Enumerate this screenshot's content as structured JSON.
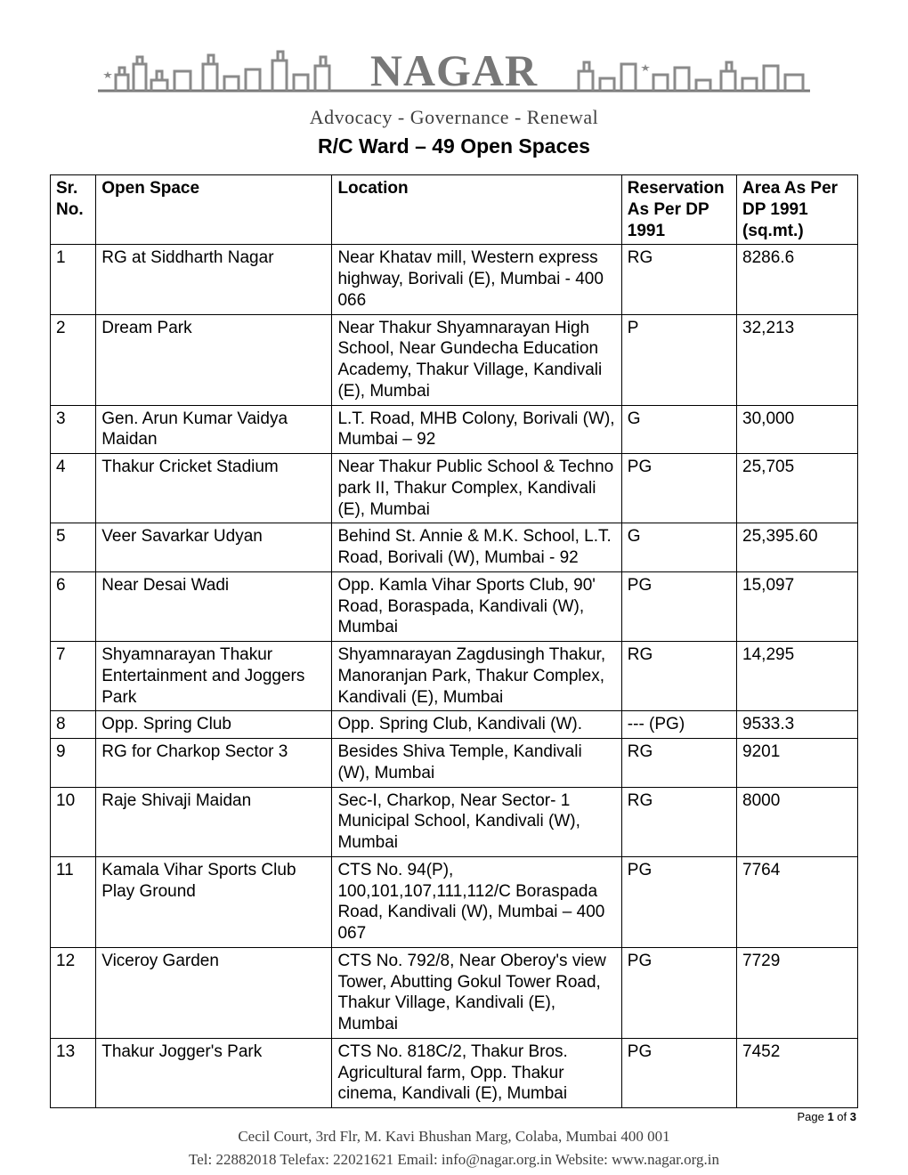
{
  "header": {
    "logo_text": "NAGAR",
    "logo_fill": "#7a7a7a",
    "logo_outline": "#6f6f6f",
    "tagline": "Advocacy - Governance - Renewal",
    "page_title": "R/C   Ward – 49 Open Spaces"
  },
  "table": {
    "columns": {
      "sr": "Sr. No.",
      "open": "Open Space",
      "loc": "Location",
      "res": "Reservation As Per DP 1991",
      "area": "Area As Per DP 1991 (sq.mt.)"
    },
    "rows": [
      {
        "sr": "1",
        "open": "RG at Siddharth Nagar",
        "loc": "Near Khatav mill, Western express highway, Borivali (E), Mumbai - 400 066",
        "res": "RG",
        "area": "8286.6"
      },
      {
        "sr": "2",
        "open": "Dream Park",
        "loc": "Near Thakur Shyamnarayan High School, Near Gundecha Education Academy, Thakur Village, Kandivali (E), Mumbai",
        "res": "P",
        "area": "32,213"
      },
      {
        "sr": "3",
        "open": "Gen. Arun Kumar Vaidya Maidan",
        "loc": "L.T. Road, MHB Colony, Borivali (W), Mumbai – 92",
        "res": "G",
        "area": "30,000"
      },
      {
        "sr": "4",
        "open": "Thakur Cricket Stadium",
        "loc": "Near Thakur Public School & Techno park II, Thakur Complex, Kandivali (E), Mumbai",
        "res": "PG",
        "area": "25,705"
      },
      {
        "sr": "5",
        "open": "Veer Savarkar Udyan",
        "loc": "Behind St. Annie & M.K. School, L.T. Road, Borivali (W), Mumbai - 92",
        "res": "G",
        "area": "25,395.60"
      },
      {
        "sr": "6",
        "open": "Near Desai Wadi",
        "loc": "Opp. Kamla Vihar Sports Club, 90' Road, Boraspada, Kandivali (W), Mumbai",
        "res": "PG",
        "area": "15,097"
      },
      {
        "sr": "7",
        "open": "Shyamnarayan Thakur Entertainment and Joggers Park",
        "loc": "Shyamnarayan Zagdusingh Thakur, Manoranjan Park, Thakur Complex, Kandivali (E), Mumbai\n",
        "res": "RG",
        "area": "14,295"
      },
      {
        "sr": "8",
        "open": "Opp. Spring Club",
        "loc": "Opp. Spring Club, Kandivali (W).",
        "res": "---   (PG)",
        "area": "9533.3"
      },
      {
        "sr": "9",
        "open": "RG for Charkop Sector 3",
        "loc": "Besides Shiva Temple, Kandivali (W), Mumbai",
        "res": "RG",
        "area": "9201"
      },
      {
        "sr": "10",
        "open": "Raje Shivaji Maidan",
        "loc": "Sec-I, Charkop, Near Sector- 1 Municipal School, Kandivali (W), Mumbai",
        "res": "RG",
        "area": "8000"
      },
      {
        "sr": "11",
        "open": "Kamala Vihar Sports Club Play Ground",
        "loc": "CTS No. 94(P), 100,101,107,111,112/C Boraspada Road, Kandivali (W), Mumbai – 400 067",
        "res": "PG",
        "area": "7764"
      },
      {
        "sr": "12",
        "open": "Viceroy Garden",
        "loc": "CTS No. 792/8, Near Oberoy's view Tower, Abutting Gokul Tower Road, Thakur Village, Kandivali (E), Mumbai",
        "res": "PG",
        "area": "7729"
      },
      {
        "sr": "13",
        "open": "Thakur Jogger's Park",
        "loc": "CTS No. 818C/2, Thakur Bros. Agricultural farm, Opp. Thakur cinema, Kandivali (E), Mumbai",
        "res": "PG",
        "area": "7452"
      }
    ]
  },
  "page_indicator": {
    "prefix": "Page ",
    "current": "1",
    "sep": " of ",
    "total": "3"
  },
  "footer": {
    "line1": "Cecil Court, 3rd Flr, M. Kavi Bhushan Marg, Colaba, Mumbai 400 001",
    "line2": "Tel: 22882018  Telefax: 22021621  Email: info@nagar.org.in  Website: www.nagar.org.in"
  }
}
